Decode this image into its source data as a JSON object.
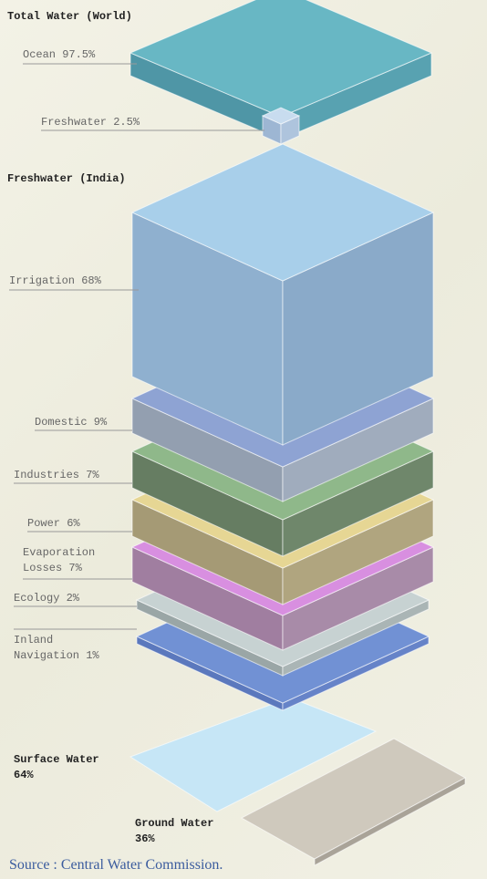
{
  "world": {
    "title": "Total Water (World)",
    "items": [
      "Ocean 97.5%",
      "Freshwater 2.5%"
    ]
  },
  "india": {
    "title": "Freshwater (India)",
    "uses": [
      "Irrigation 68%",
      "Domestic 9%",
      "Industries 7%",
      "Power 6%",
      "Evaporation Losses 7%",
      "Ecology 2%",
      "Inland Navigation 1%"
    ]
  },
  "sources": [
    "Surface Water 64%",
    "Ground Water 36%"
  ],
  "footer": "Source : Central Water Commission."
}
